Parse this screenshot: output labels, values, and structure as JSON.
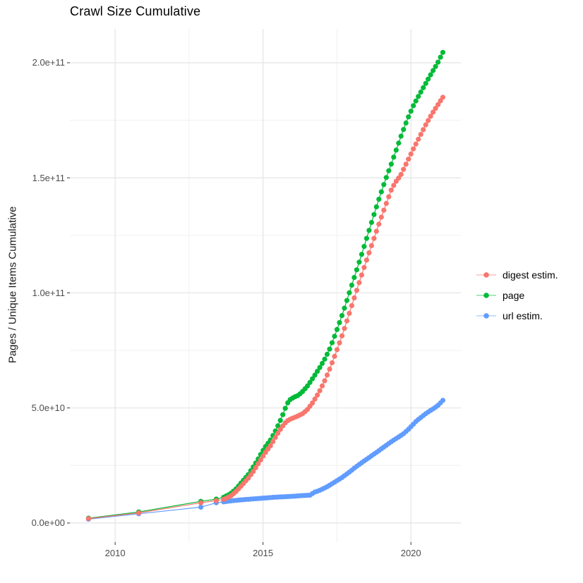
{
  "chart_data": {
    "type": "scatter",
    "title": "Crawl Size Cumulative",
    "xlabel": "",
    "ylabel": "Pages / Unique Items Cumulative",
    "values_unit": "items (stored as billions, 1e9)",
    "x_range": [
      2008.47,
      2021.69
    ],
    "y_range_billions": [
      -8.3,
      214.7
    ],
    "grid": "on",
    "legend_position": "right",
    "x_ticks": [
      2010,
      2015,
      2020
    ],
    "x_tick_labels": [
      "2010",
      "2015",
      "2020"
    ],
    "x_minor_ticks": [
      2012.5,
      2017.5
    ],
    "y_ticks_billions": [
      0,
      50,
      100,
      150,
      200
    ],
    "y_tick_labels": [
      "0.0e+00",
      "5.0e+10",
      "1.0e+11",
      "1.5e+11",
      "2.0e+11"
    ],
    "y_minor_ticks_billions": [
      25,
      75,
      125,
      175
    ],
    "marker_interval_years": 0.0833,
    "marker_radius_px": 3.6,
    "colors": {
      "digest": "#F8766D",
      "page": "#00BA38",
      "url": "#619CFF"
    },
    "series": [
      {
        "name": "digest estim.",
        "color": "#F8766D",
        "sparse_points": [
          [
            2009.1,
            1.9
          ],
          [
            2010.8,
            4.4
          ],
          [
            2012.9,
            8.8
          ],
          [
            2013.42,
            9.7
          ]
        ],
        "trend_points": [
          [
            2013.67,
            10.3
          ],
          [
            2013.83,
            11.2
          ],
          [
            2013.95,
            12.1
          ],
          [
            2014.1,
            13.9
          ],
          [
            2014.3,
            16.6
          ],
          [
            2014.5,
            19.5
          ],
          [
            2014.65,
            22.0
          ],
          [
            2014.8,
            25.0
          ],
          [
            2014.95,
            28.0
          ],
          [
            2015.1,
            31.0
          ],
          [
            2015.25,
            33.5
          ],
          [
            2015.4,
            36.8
          ],
          [
            2015.55,
            40.0
          ],
          [
            2015.7,
            42.8
          ],
          [
            2015.8,
            44.2
          ],
          [
            2015.9,
            45.0
          ],
          [
            2016.05,
            45.8
          ],
          [
            2016.2,
            46.6
          ],
          [
            2016.35,
            47.6
          ],
          [
            2016.5,
            49.3
          ],
          [
            2016.65,
            51.8
          ],
          [
            2016.8,
            54.8
          ],
          [
            2016.95,
            58.2
          ],
          [
            2017.1,
            62.2
          ],
          [
            2017.25,
            66.8
          ],
          [
            2017.4,
            71.8
          ],
          [
            2017.55,
            77.0
          ],
          [
            2017.7,
            82.5
          ],
          [
            2017.85,
            88.4
          ],
          [
            2018.0,
            94.4
          ],
          [
            2018.15,
            100.4
          ],
          [
            2018.3,
            106.4
          ],
          [
            2018.45,
            112.3
          ],
          [
            2018.6,
            118.0
          ],
          [
            2018.75,
            123.6
          ],
          [
            2018.9,
            129.2
          ],
          [
            2019.05,
            134.7
          ],
          [
            2019.2,
            140.0
          ],
          [
            2019.35,
            145.2
          ],
          [
            2019.5,
            148.5
          ],
          [
            2019.65,
            151.0
          ],
          [
            2019.8,
            155.0
          ],
          [
            2019.95,
            159.0
          ],
          [
            2020.1,
            163.0
          ],
          [
            2020.3,
            168.0
          ],
          [
            2020.5,
            173.0
          ],
          [
            2020.7,
            177.5
          ],
          [
            2020.9,
            181.5
          ],
          [
            2021.08,
            185.0
          ]
        ]
      },
      {
        "name": "page",
        "color": "#00BA38",
        "sparse_points": [
          [
            2009.1,
            2.1
          ],
          [
            2010.8,
            4.8
          ],
          [
            2012.9,
            9.4
          ],
          [
            2013.42,
            10.4
          ]
        ],
        "trend_points": [
          [
            2013.67,
            11.2
          ],
          [
            2013.83,
            12.2
          ],
          [
            2013.95,
            13.2
          ],
          [
            2014.1,
            15.0
          ],
          [
            2014.3,
            18.0
          ],
          [
            2014.5,
            21.0
          ],
          [
            2014.65,
            24.0
          ],
          [
            2014.8,
            27.0
          ],
          [
            2014.95,
            30.5
          ],
          [
            2015.1,
            33.5
          ],
          [
            2015.25,
            36.0
          ],
          [
            2015.4,
            39.5
          ],
          [
            2015.55,
            43.5
          ],
          [
            2015.7,
            48.0
          ],
          [
            2015.8,
            51.5
          ],
          [
            2015.9,
            53.5
          ],
          [
            2016.05,
            54.7
          ],
          [
            2016.2,
            55.5
          ],
          [
            2016.35,
            57.3
          ],
          [
            2016.5,
            59.5
          ],
          [
            2016.65,
            62.3
          ],
          [
            2016.8,
            65.2
          ],
          [
            2016.95,
            68.2
          ],
          [
            2017.1,
            71.5
          ],
          [
            2017.25,
            75.5
          ],
          [
            2017.4,
            80.5
          ],
          [
            2017.55,
            85.8
          ],
          [
            2017.7,
            91.3
          ],
          [
            2017.85,
            97.3
          ],
          [
            2018.0,
            103.3
          ],
          [
            2018.15,
            109.3
          ],
          [
            2018.3,
            115.3
          ],
          [
            2018.45,
            121.5
          ],
          [
            2018.6,
            127.8
          ],
          [
            2018.75,
            134.0
          ],
          [
            2018.9,
            140.0
          ],
          [
            2019.05,
            145.8
          ],
          [
            2019.2,
            151.3
          ],
          [
            2019.35,
            156.5
          ],
          [
            2019.5,
            162.0
          ],
          [
            2019.65,
            167.5
          ],
          [
            2019.8,
            172.7
          ],
          [
            2019.95,
            177.5
          ],
          [
            2020.1,
            181.8
          ],
          [
            2020.3,
            186.5
          ],
          [
            2020.5,
            191.0
          ],
          [
            2020.7,
            195.5
          ],
          [
            2020.9,
            199.8
          ],
          [
            2021.08,
            204.5
          ]
        ]
      },
      {
        "name": "url estim.",
        "color": "#619CFF",
        "sparse_points": [
          [
            2009.1,
            1.7
          ],
          [
            2010.8,
            4.0
          ],
          [
            2012.9,
            6.9
          ],
          [
            2013.42,
            8.8
          ]
        ],
        "trend_points": [
          [
            2013.67,
            9.2
          ],
          [
            2013.9,
            9.6
          ],
          [
            2014.2,
            10.0
          ],
          [
            2014.5,
            10.3
          ],
          [
            2014.8,
            10.6
          ],
          [
            2015.1,
            10.9
          ],
          [
            2015.4,
            11.2
          ],
          [
            2015.7,
            11.4
          ],
          [
            2016.0,
            11.6
          ],
          [
            2016.2,
            11.8
          ],
          [
            2016.45,
            12.0
          ],
          [
            2016.6,
            12.1
          ],
          [
            2016.72,
            13.3
          ],
          [
            2016.9,
            14.1
          ],
          [
            2017.05,
            15.0
          ],
          [
            2017.2,
            16.0
          ],
          [
            2017.35,
            17.2
          ],
          [
            2017.5,
            18.4
          ],
          [
            2017.65,
            19.6
          ],
          [
            2017.8,
            21.0
          ],
          [
            2017.95,
            22.4
          ],
          [
            2018.1,
            24.0
          ],
          [
            2018.25,
            25.4
          ],
          [
            2018.4,
            26.8
          ],
          [
            2018.55,
            28.1
          ],
          [
            2018.7,
            29.5
          ],
          [
            2018.85,
            30.8
          ],
          [
            2019.0,
            32.2
          ],
          [
            2019.15,
            33.6
          ],
          [
            2019.3,
            35.0
          ],
          [
            2019.45,
            36.3
          ],
          [
            2019.6,
            37.5
          ],
          [
            2019.75,
            38.8
          ],
          [
            2019.9,
            40.5
          ],
          [
            2020.05,
            42.5
          ],
          [
            2020.2,
            44.5
          ],
          [
            2020.35,
            46.0
          ],
          [
            2020.5,
            47.5
          ],
          [
            2020.65,
            48.8
          ],
          [
            2020.8,
            50.0
          ],
          [
            2020.95,
            51.5
          ],
          [
            2021.08,
            53.3
          ]
        ]
      }
    ],
    "grid_colors": {
      "major": "#e4e4e4",
      "minor": "#f0f0f0"
    },
    "tick_mark_color": "#333333"
  }
}
